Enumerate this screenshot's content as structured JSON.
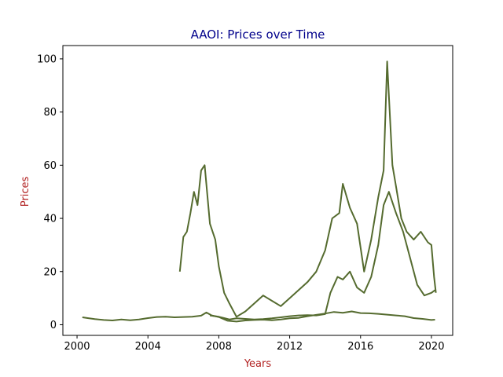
{
  "chart_data": {
    "type": "line",
    "title": "AAOI: Prices over Time",
    "xlabel": "Years",
    "ylabel": "Prices",
    "xlim": [
      1999.2,
      2021.2
    ],
    "ylim": [
      -4,
      105
    ],
    "x_ticks": [
      2000,
      2004,
      2008,
      2012,
      2016,
      2020
    ],
    "x_tick_labels": [
      "2000",
      "2004",
      "2008",
      "2012",
      "2016",
      "2020"
    ],
    "y_ticks": [
      0,
      20,
      40,
      60,
      80,
      100
    ],
    "y_tick_labels": [
      "0",
      "20",
      "40",
      "60",
      "80",
      "100"
    ],
    "grid": false,
    "colors": {
      "line": "#556B2F",
      "title": "#00008B",
      "axis_label": "#B22222"
    },
    "series": [
      {
        "x": [
          2000.3,
          2000.6,
          2001.0,
          2001.5,
          2002.0,
          2002.5,
          2003.0,
          2003.5,
          2004.0,
          2004.5,
          2005.0,
          2005.5,
          2006.0,
          2006.5,
          2007.0,
          2007.3,
          2007.6,
          2008.0,
          2008.5,
          2009.0,
          2009.5,
          2010.0,
          2010.5,
          2011.0,
          2011.5,
          2012.0,
          2012.5,
          2013.0,
          2013.5,
          2014.0,
          2014.5,
          2015.0,
          2015.5,
          2016.0,
          2016.5,
          2017.0,
          2017.5,
          2018.0,
          2018.5,
          2019.0,
          2019.5,
          2020.0,
          2020.2
        ],
        "y": [
          2.8,
          2.5,
          2.1,
          1.8,
          1.6,
          2.0,
          1.7,
          2.0,
          2.5,
          2.9,
          3.0,
          2.8,
          2.9,
          3.0,
          3.4,
          4.6,
          3.5,
          2.9,
          1.5,
          1.2,
          1.6,
          1.8,
          1.9,
          1.7,
          2.0,
          2.4,
          2.6,
          3.2,
          3.7,
          4.2,
          4.8,
          4.5,
          5.0,
          4.4,
          4.3,
          4.1,
          3.8,
          3.5,
          3.2,
          2.5,
          2.2,
          1.8,
          1.9
        ]
      },
      {
        "x": [
          2005.8,
          2006.0,
          2006.2,
          2006.4,
          2006.6,
          2006.8,
          2007.0,
          2007.2,
          2007.5,
          2007.8,
          2008.0,
          2008.3,
          2008.6,
          2009.0,
          2009.5,
          2010.0,
          2010.5,
          2011.0,
          2011.5,
          2012.0,
          2012.5,
          2013.0,
          2013.5,
          2014.0,
          2014.4,
          2014.8,
          2015.0,
          2015.4,
          2015.8,
          2016.2,
          2016.6,
          2017.0,
          2017.3,
          2017.5,
          2017.8,
          2018.0,
          2018.3,
          2018.6,
          2019.0,
          2019.4,
          2019.8,
          2020.0,
          2020.15,
          2020.25
        ],
        "y": [
          20,
          33,
          35,
          42,
          50,
          45,
          58,
          60,
          38,
          32,
          22,
          12,
          8,
          3,
          5,
          8,
          11,
          9,
          7,
          10,
          13,
          16,
          20,
          28,
          40,
          42,
          53,
          44,
          38,
          20,
          32,
          48,
          58,
          99,
          60,
          52,
          40,
          35,
          32,
          35,
          31,
          30,
          18,
          12
        ]
      },
      {
        "x": [
          2007.5,
          2007.8,
          2008.0,
          2008.3,
          2008.6,
          2009.0,
          2009.5,
          2010.0,
          2010.5,
          2011.0,
          2011.5,
          2012.0,
          2012.5,
          2013.0,
          2013.5,
          2014.0,
          2014.3,
          2014.7,
          2015.0,
          2015.4,
          2015.8,
          2016.2,
          2016.6,
          2017.0,
          2017.3,
          2017.6,
          2018.0,
          2018.4,
          2018.8,
          2019.2,
          2019.6,
          2020.0,
          2020.2
        ],
        "y": [
          3.5,
          3.2,
          3.0,
          2.5,
          2.0,
          2.4,
          2.2,
          2.0,
          2.1,
          2.4,
          2.8,
          3.2,
          3.5,
          3.6,
          3.5,
          4.0,
          12,
          18,
          17,
          20,
          14,
          12,
          18,
          30,
          45,
          50,
          42,
          35,
          25,
          15,
          11,
          12,
          13
        ]
      }
    ]
  }
}
